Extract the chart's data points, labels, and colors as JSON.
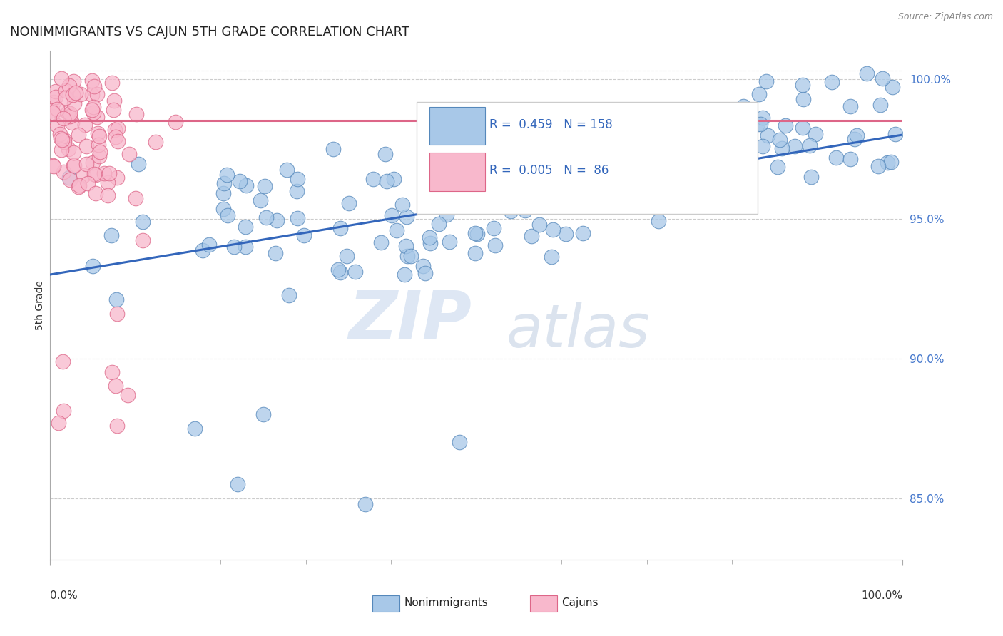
{
  "title": "NONIMMIGRANTS VS CAJUN 5TH GRADE CORRELATION CHART",
  "source": "Source: ZipAtlas.com",
  "ylabel": "5th Grade",
  "xlim": [
    0.0,
    1.0
  ],
  "ylim": [
    0.828,
    1.01
  ],
  "blue_R": 0.459,
  "blue_N": 158,
  "pink_R": 0.005,
  "pink_N": 86,
  "blue_color": "#a8c8e8",
  "blue_edge": "#5588bb",
  "pink_color": "#f8b8cc",
  "pink_edge": "#dd6688",
  "blue_line_color": "#3366bb",
  "pink_line_color": "#dd6688",
  "watermark_zip": "ZIP",
  "watermark_atlas": "atlas",
  "title_color": "#222222",
  "title_fontsize": 13,
  "blue_line": {
    "x0": 0.0,
    "y0": 0.93,
    "x1": 1.0,
    "y1": 0.98
  },
  "pink_line": {
    "x0": 0.0,
    "y0": 0.985,
    "x1": 1.0,
    "y1": 0.985
  },
  "ytick_vals": [
    0.85,
    0.9,
    0.95,
    1.0
  ],
  "ytick_labels": [
    "85.0%",
    "90.0%",
    "95.0%",
    "100.0%"
  ]
}
